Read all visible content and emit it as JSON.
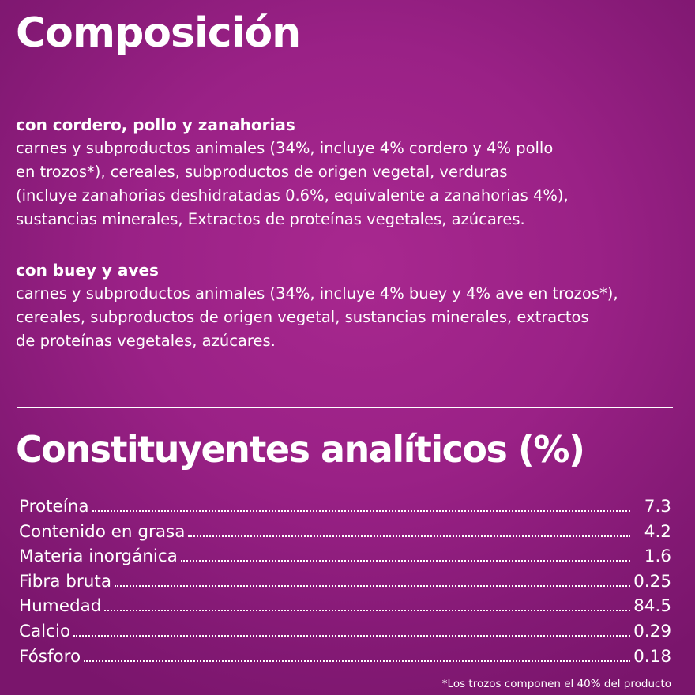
{
  "composition": {
    "title": "Composición",
    "sections": [
      {
        "title": "con cordero, pollo y zanahorias",
        "lines": [
          "carnes y subproductos animales (34%, incluye 4% cordero y 4% pollo",
          "en trozos*), cereales, subproductos de origen vegetal, verduras",
          "(incluye zanahorias deshidratadas 0.6%, equivalente a zanahorias 4%),",
          "sustancias minerales, Extractos de proteínas vegetales, azúcares."
        ]
      },
      {
        "title": "con buey y aves",
        "lines": [
          "carnes y subproductos animales (34%, incluye 4% buey y 4% ave en trozos*),",
          "cereales, subproductos de origen vegetal, sustancias minerales, extractos",
          "de proteínas vegetales, azúcares."
        ]
      }
    ]
  },
  "analytics": {
    "title": "Constituyentes analíticos (%)",
    "rows": [
      {
        "name": "Proteína",
        "value": "7.3"
      },
      {
        "name": "Contenido en grasa",
        "value": "4.2"
      },
      {
        "name": "Materia inorgánica",
        "value": "1.6"
      },
      {
        "name": "Fibra bruta",
        "value": "0.25"
      },
      {
        "name": "Humedad",
        "value": "84.5"
      },
      {
        "name": "Calcio",
        "value": "0.29"
      },
      {
        "name": "Fósforo",
        "value": "0.18"
      }
    ],
    "footnote": "*Los trozos componen el 40% del producto"
  },
  "colors": {
    "background": "#9a2186",
    "text": "#ffffff"
  }
}
